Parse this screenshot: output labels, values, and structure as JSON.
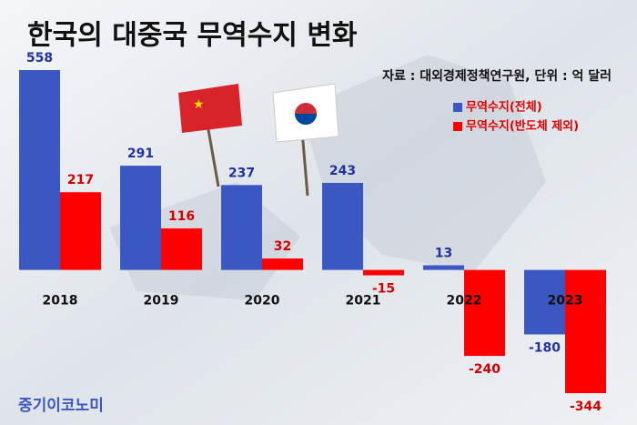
{
  "chart_data": {
    "type": "bar",
    "title": "한국의 대중국 무역수지 변화",
    "subtitle": "자료 : 대외경제정책연구원, 단위 : 억 달러",
    "footer": "중기이코노미",
    "categories": [
      "2018",
      "2019",
      "2020",
      "2021",
      "2022",
      "2023"
    ],
    "series": [
      {
        "name": "무역수지(전체)",
        "color": "#3b57c2",
        "label_color": "#22339e",
        "values": [
          558,
          291,
          237,
          243,
          13,
          -180
        ]
      },
      {
        "name": "무역수지(반도체 제외)",
        "color": "#ff0000",
        "label_color": "#d40000",
        "values": [
          217,
          116,
          32,
          -15,
          -240,
          -344
        ]
      }
    ]
  }
}
